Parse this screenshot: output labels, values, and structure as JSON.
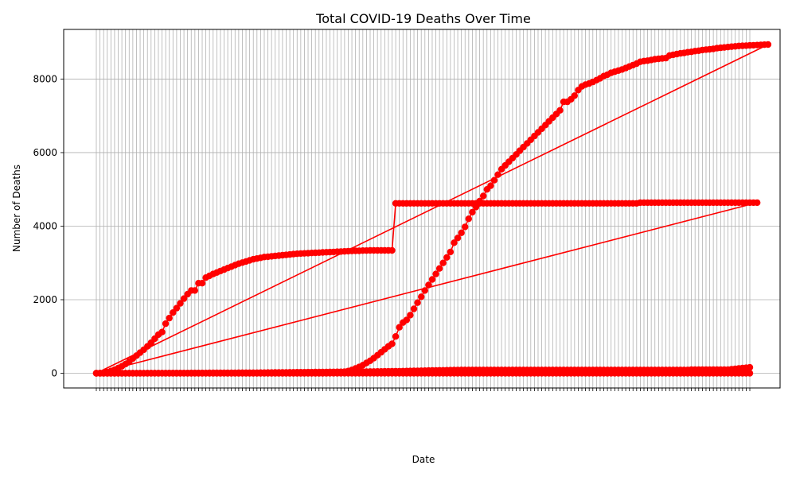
{
  "chart_data": {
    "type": "line",
    "title": "Total COVID-19 Deaths Over Time",
    "xlabel": "Date",
    "ylabel": "Number of Deaths",
    "x_tick_count": 180,
    "y_ticks": [
      0,
      2000,
      4000,
      6000,
      8000
    ],
    "ylim": [
      -400,
      9350
    ],
    "grid": true,
    "line_color": "#ff0000",
    "marker": "circle",
    "series": [
      {
        "segment": "early-wave",
        "values": [
          0,
          5,
          15,
          35,
          60,
          95,
          140,
          190,
          250,
          320,
          400,
          480,
          560,
          640,
          730,
          830,
          940,
          1050,
          1120,
          1350,
          1500,
          1650,
          1770,
          1900,
          2030,
          2150,
          2250,
          2250,
          2450,
          2450,
          2600,
          2650,
          2700,
          2740,
          2780,
          2820,
          2860,
          2900,
          2940,
          2980,
          3010,
          3040,
          3070,
          3100,
          3120,
          3140,
          3160,
          3170,
          3180,
          3190,
          3200,
          3210,
          3220,
          3230,
          3240,
          3250,
          3255,
          3260,
          3265,
          3270,
          3275,
          3280,
          3285,
          3290,
          3295,
          3300,
          3305,
          3310,
          3315,
          3320,
          3325,
          3330,
          3330,
          3335,
          3335,
          3340,
          3340,
          3340,
          3340,
          3340,
          3340,
          3340,
          4620,
          4620,
          4620,
          4620,
          4620,
          4620,
          4620,
          4620,
          4620,
          4620,
          4620,
          4620,
          4620,
          4620,
          4620,
          4620,
          4620,
          4620,
          4620,
          4620,
          4620,
          4620,
          4620,
          4620,
          4620,
          4620,
          4620,
          4620,
          4620,
          4620,
          4620,
          4620,
          4620,
          4620,
          4620,
          4620,
          4620,
          4620,
          4620,
          4620,
          4620,
          4620,
          4620,
          4620,
          4620,
          4620,
          4620,
          4620,
          4620,
          4620,
          4620,
          4620,
          4620,
          4620,
          4620,
          4620,
          4620,
          4620,
          4620,
          4620,
          4620,
          4620,
          4620,
          4620,
          4620,
          4620,
          4620,
          4640,
          4640,
          4640,
          4640,
          4640,
          4640,
          4640,
          4640,
          4640,
          4640,
          4640,
          4640,
          4640,
          4640,
          4640,
          4640,
          4640,
          4640,
          4640,
          4640,
          4640,
          4640,
          4640,
          4640,
          4640,
          4640,
          4640,
          4640,
          4640,
          4640,
          4640,
          4640,
          4640
        ]
      },
      {
        "segment": "later-wave",
        "values": [
          0,
          0,
          0,
          0,
          0,
          0,
          0,
          0,
          0,
          0,
          0,
          0,
          0,
          0,
          0,
          0,
          0,
          0,
          0,
          0,
          0,
          0,
          0,
          0,
          0,
          0,
          0,
          0,
          0,
          0,
          0,
          0,
          0,
          0,
          0,
          0,
          0,
          0,
          0,
          0,
          0,
          0,
          0,
          0,
          0,
          0,
          0,
          0,
          0,
          0,
          0,
          0,
          0,
          0,
          0,
          0,
          0,
          0,
          0,
          0,
          0,
          0,
          0,
          2,
          5,
          10,
          15,
          25,
          40,
          60,
          90,
          130,
          170,
          220,
          280,
          340,
          410,
          490,
          570,
          650,
          730,
          800,
          1000,
          1250,
          1380,
          1450,
          1580,
          1750,
          1920,
          2080,
          2250,
          2400,
          2550,
          2700,
          2850,
          3000,
          3150,
          3300,
          3550,
          3680,
          3820,
          3980,
          4200,
          4380,
          4520,
          4680,
          4820,
          5000,
          5100,
          5250,
          5400,
          5550,
          5650,
          5750,
          5850,
          5950,
          6050,
          6150,
          6250,
          6350,
          6450,
          6550,
          6650,
          6750,
          6850,
          6950,
          7050,
          7150,
          7380,
          7380,
          7450,
          7550,
          7700,
          7800,
          7850,
          7880,
          7920,
          7970,
          8020,
          8080,
          8120,
          8170,
          8200,
          8230,
          8260,
          8300,
          8340,
          8380,
          8420,
          8470,
          8490,
          8500,
          8520,
          8540,
          8550,
          8560,
          8570,
          8640,
          8660,
          8680,
          8700,
          8710,
          8730,
          8740,
          8760,
          8770,
          8790,
          8800,
          8810,
          8820,
          8840,
          8850,
          8860,
          8870,
          8880,
          8890,
          8900,
          8905,
          8910,
          8915,
          8920,
          8925,
          8930,
          8935,
          8940
        ]
      },
      {
        "segment": "low-series",
        "values": [
          0,
          0,
          0,
          0,
          0,
          0,
          0,
          0,
          0,
          0,
          0,
          0,
          0,
          0,
          0,
          0,
          0,
          0,
          0,
          0,
          0,
          0,
          0,
          0,
          0,
          0,
          0,
          0,
          0,
          0,
          0,
          0,
          0,
          0,
          0,
          0,
          0,
          0,
          0,
          0,
          0,
          0,
          0,
          0,
          0,
          0,
          0,
          0,
          0,
          0,
          0,
          0,
          0,
          0,
          0,
          0,
          0,
          0,
          0,
          0,
          0,
          0,
          0,
          0,
          0,
          0,
          0,
          0,
          0,
          0,
          0,
          0,
          0,
          0,
          0,
          0,
          0,
          0,
          0,
          0,
          0,
          0,
          0,
          0,
          0,
          0,
          0,
          0,
          0,
          0,
          0,
          0,
          0,
          0,
          0,
          0,
          0,
          0,
          0,
          0,
          0,
          0,
          0,
          0,
          0,
          0,
          0,
          0,
          0,
          0,
          0,
          0,
          0,
          0,
          0,
          0,
          0,
          0,
          0,
          0,
          0,
          0,
          0,
          0,
          0,
          0,
          0,
          0,
          0,
          0,
          0,
          0,
          0,
          0,
          0,
          0,
          0,
          0,
          0,
          0,
          0,
          0,
          0,
          0,
          0,
          0,
          0,
          0,
          0,
          0,
          0,
          0,
          0,
          0,
          0,
          0,
          0,
          0,
          0,
          0,
          0,
          0,
          0,
          0,
          0,
          0,
          0,
          0,
          0,
          0,
          0,
          0,
          0,
          0,
          0,
          0,
          0,
          0,
          0,
          0
        ]
      },
      {
        "segment": "mid-series",
        "values": [
          0,
          0,
          0,
          0,
          0,
          1,
          1,
          1,
          2,
          2,
          2,
          3,
          3,
          3,
          4,
          4,
          4,
          5,
          5,
          5,
          6,
          6,
          6,
          7,
          7,
          7,
          8,
          8,
          8,
          9,
          9,
          10,
          10,
          11,
          11,
          12,
          12,
          13,
          13,
          14,
          14,
          15,
          15,
          16,
          16,
          17,
          18,
          19,
          20,
          21,
          22,
          23,
          24,
          25,
          26,
          27,
          28,
          29,
          30,
          31,
          32,
          33,
          34,
          35,
          36,
          37,
          38,
          39,
          40,
          41,
          42,
          43,
          44,
          45,
          46,
          47,
          48,
          49,
          50,
          51,
          52,
          53,
          55,
          57,
          59,
          61,
          63,
          65,
          67,
          69,
          71,
          73,
          75,
          77,
          79,
          81,
          83,
          85,
          87,
          89,
          90,
          90,
          90,
          90,
          90,
          90,
          90,
          90,
          90,
          90,
          90,
          90,
          90,
          90,
          90,
          90,
          90,
          90,
          90,
          90,
          90,
          90,
          90,
          90,
          90,
          90,
          90,
          90,
          90,
          90,
          90,
          90,
          90,
          90,
          90,
          90,
          90,
          90,
          90,
          90,
          90,
          90,
          90,
          90,
          90,
          90,
          90,
          90,
          90,
          90,
          90,
          90,
          90,
          90,
          90,
          90,
          90,
          90,
          90,
          90,
          90,
          90,
          90,
          100,
          100,
          100,
          100,
          100,
          100,
          100,
          100,
          100,
          100,
          100,
          110,
          120,
          130,
          140,
          150,
          160
        ]
      }
    ]
  }
}
